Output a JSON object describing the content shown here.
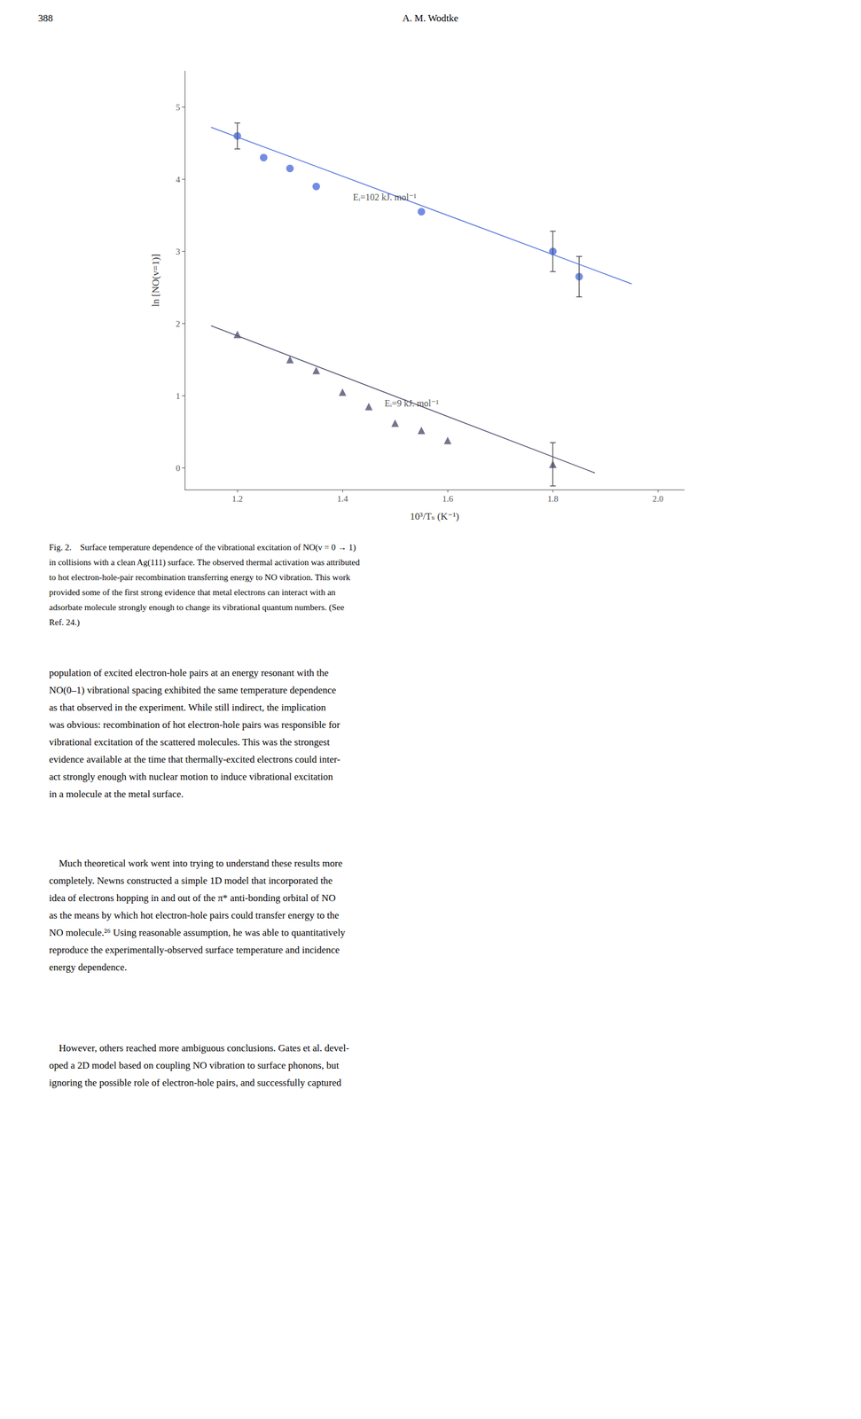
{
  "chart_data": {
    "type": "scatter",
    "page_number": "388",
    "author": "A. M. Wodtke",
    "xlabel": "10³/Tₛ (K⁻¹)",
    "ylabel": "ln [NO(v=1)]",
    "xlim": [
      1.1,
      2.05
    ],
    "ylim": [
      -0.3,
      5.5
    ],
    "xticks": [
      1.2,
      1.4,
      1.6,
      1.8,
      {
        "value": 2.0,
        "label": "2.0"
      }
    ],
    "yticks": [
      0,
      1,
      2,
      3,
      4,
      5
    ],
    "grid": false,
    "series": [
      {
        "marker": "circle",
        "x": [
          1.2,
          1.25,
          1.3,
          1.35,
          1.55,
          1.8,
          1.85
        ],
        "values": [
          4.6,
          4.3,
          4.15,
          3.9,
          3.55,
          3.0,
          2.65
        ],
        "yerr": [
          0.18,
          0.0,
          0.0,
          0.0,
          0.0,
          0.28,
          0.28
        ],
        "fit": {
          "line_style": "solid",
          "x": [
            1.15,
            1.95
          ],
          "values": [
            4.72,
            2.55
          ]
        }
      },
      {
        "marker": "triangle",
        "x": [
          1.2,
          1.3,
          1.35,
          1.4,
          1.45,
          1.5,
          1.55,
          1.6,
          1.8
        ],
        "values": [
          1.85,
          1.5,
          1.35,
          1.05,
          0.85,
          0.62,
          0.52,
          0.38,
          0.05
        ],
        "yerr": [
          0.0,
          0.0,
          0.0,
          0.0,
          0.0,
          0.0,
          0.0,
          0.0,
          0.3
        ],
        "fit": {
          "line_style": "solid",
          "x": [
            1.15,
            1.88
          ],
          "values": [
            1.97,
            -0.07
          ]
        }
      }
    ],
    "annotations": [
      {
        "text": "Eᵢ=102 kJ. mol⁻¹",
        "x": 1.42,
        "y": 3.75
      },
      {
        "text": "Eᵢ=9 kJ. mol⁻¹",
        "x": 1.48,
        "y": 0.9
      }
    ],
    "caption": "Fig. 2.    Surface temperature dependence of the vibrational excitation of NO(ν = 0 → 1)\nin collisions with a clean Ag(111) surface. The observed thermal activation was attributed\nto hot electron-hole-pair recombination transferring energy to NO vibration. This work\nprovided some of the first strong evidence that metal electrons can interact with an\nadsorbate molecule strongly enough to change its vibrational quantum numbers. (See\nRef. 24.)",
    "body": [
      "population of excited electron-hole pairs at an energy resonant with the\nNO(0–1) vibrational spacing exhibited the same temperature dependence\nas that observed in the experiment. While still indirect, the implication\nwas obvious: recombination of hot electron-hole pairs was responsible for\nvibrational excitation of the scattered molecules. This was the strongest\nevidence available at the time that thermally-excited electrons could inter-\nact strongly enough with nuclear motion to induce vibrational excitation\nin a molecule at the metal surface.",
      "    Much theoretical work went into trying to understand these results more\ncompletely. Newns constructed a simple 1D model that incorporated the\nidea of electrons hopping in and out of the π* anti-bonding orbital of NO\nas the means by which hot electron-hole pairs could transfer energy to the\nNO molecule.²⁶ Using reasonable assumption, he was able to quantitatively\nreproduce the experimentally-observed surface temperature and incidence\nenergy dependence.",
      "    However, others reached more ambiguous conclusions. Gates et al. devel-\noped a 2D model based on coupling NO vibration to surface phonons, but\nignoring the possible role of electron-hole pairs, and successfully captured"
    ]
  }
}
